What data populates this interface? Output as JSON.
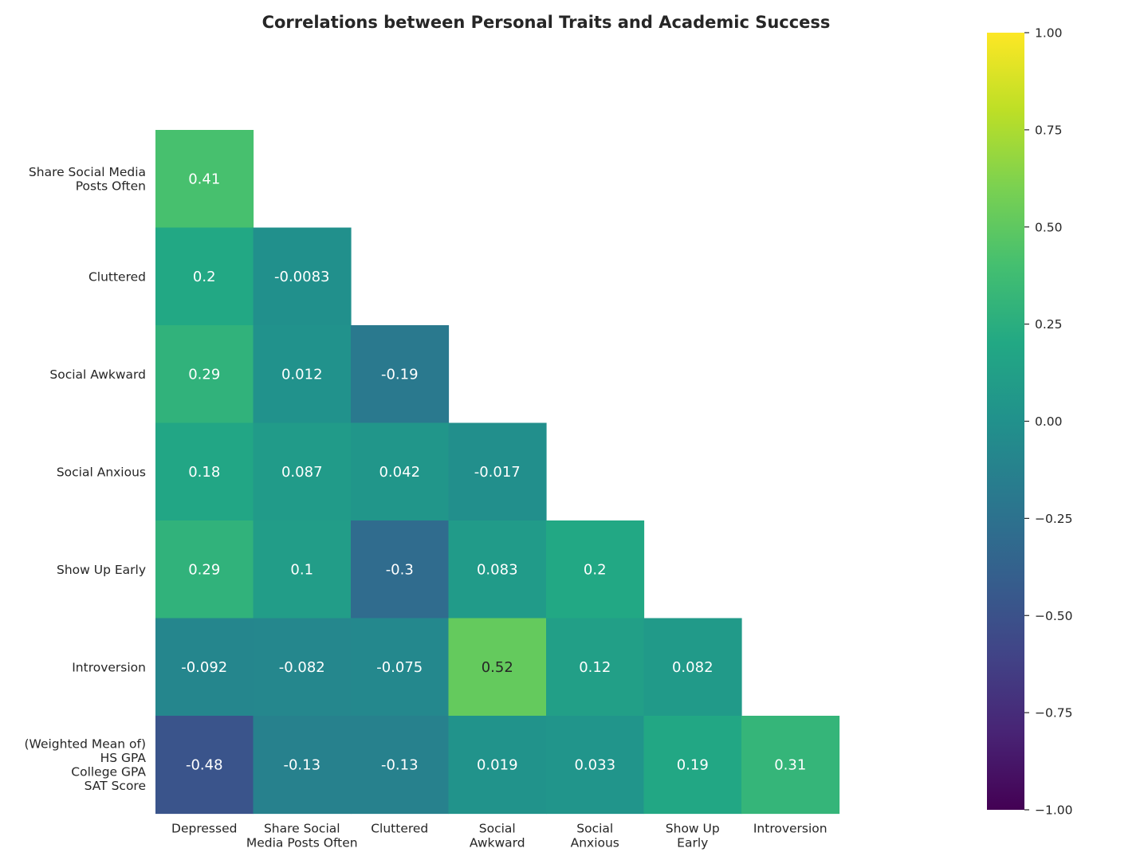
{
  "chart_data": {
    "type": "heatmap",
    "title": "Correlations between Personal Traits and Academic Success",
    "colormap": "viridis",
    "mask": "upper-triangle",
    "row_labels": [
      [
        "Share Social Media",
        "Posts Often"
      ],
      [
        "Cluttered"
      ],
      [
        "Social Awkward"
      ],
      [
        "Social Anxious"
      ],
      [
        "Show Up Early"
      ],
      [
        "Introversion"
      ],
      [
        "(Weighted Mean of)",
        "HS GPA",
        "College GPA",
        "SAT Score"
      ]
    ],
    "col_labels": [
      [
        "Depressed"
      ],
      [
        "Share Social",
        "Media Posts Often"
      ],
      [
        "Cluttered"
      ],
      [
        "Social",
        "Awkward"
      ],
      [
        "Social",
        "Anxious"
      ],
      [
        "Show Up",
        "Early"
      ],
      [
        "Introversion"
      ]
    ],
    "values": [
      [
        0.41
      ],
      [
        0.2,
        -0.0083
      ],
      [
        0.29,
        0.012,
        -0.19
      ],
      [
        0.18,
        0.087,
        0.042,
        -0.017
      ],
      [
        0.29,
        0.1,
        -0.3,
        0.083,
        0.2
      ],
      [
        -0.092,
        -0.082,
        -0.075,
        0.52,
        0.12,
        0.082
      ],
      [
        -0.48,
        -0.13,
        -0.13,
        0.019,
        0.033,
        0.19,
        0.31
      ]
    ],
    "cell_labels": [
      [
        "0.41"
      ],
      [
        "0.2",
        "-0.0083"
      ],
      [
        "0.29",
        "0.012",
        "-0.19"
      ],
      [
        "0.18",
        "0.087",
        "0.042",
        "-0.017"
      ],
      [
        "0.29",
        "0.1",
        "-0.3",
        "0.083",
        "0.2"
      ],
      [
        "-0.092",
        "-0.082",
        "-0.075",
        "0.52",
        "0.12",
        "0.082"
      ],
      [
        "-0.48",
        "-0.13",
        "-0.13",
        "0.019",
        "0.033",
        "0.19",
        "0.31"
      ]
    ],
    "colorbar": {
      "range": [
        -1,
        1
      ],
      "ticks": [
        1.0,
        0.75,
        0.5,
        0.25,
        0.0,
        -0.25,
        -0.5,
        -0.75,
        -1.0
      ],
      "tick_labels": [
        "1.00",
        "0.75",
        "0.50",
        "0.25",
        "0.00",
        "−0.25",
        "−0.50",
        "−0.75",
        "−1.00"
      ]
    },
    "grid": false
  }
}
